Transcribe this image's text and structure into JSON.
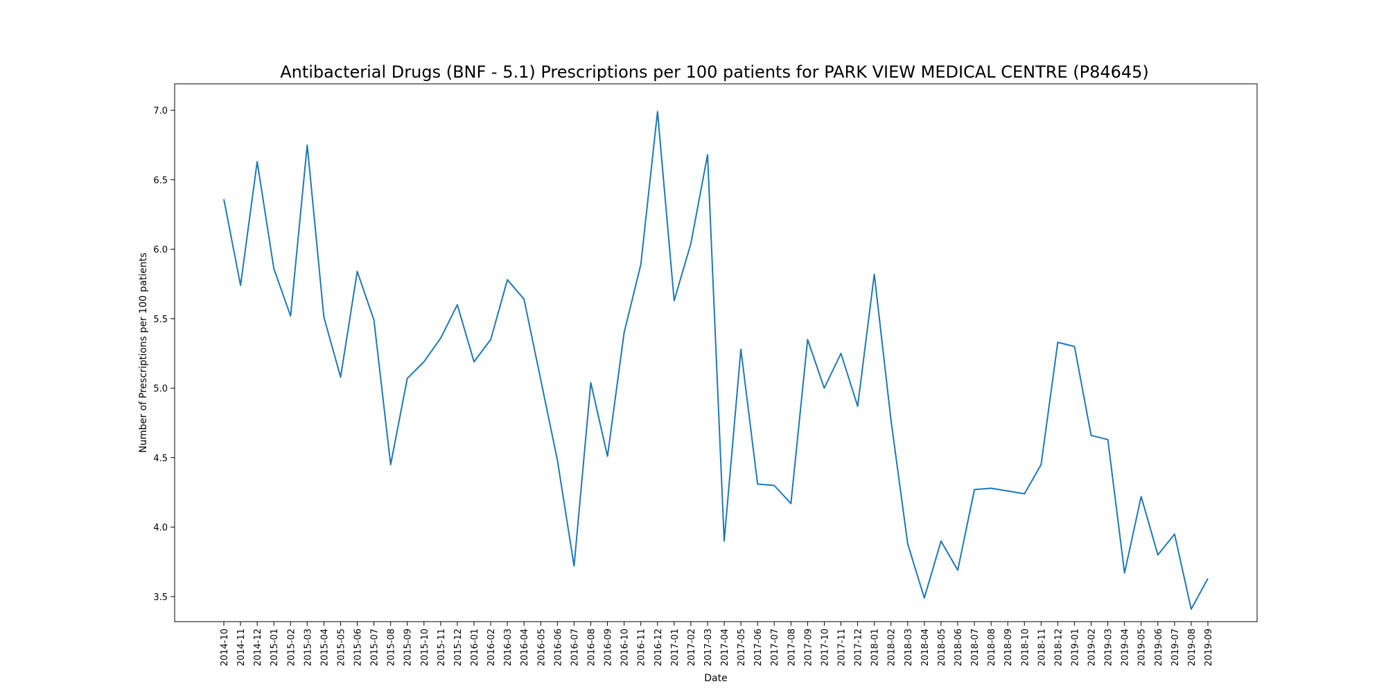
{
  "chart_data": {
    "type": "line",
    "title": "Antibacterial Drugs (BNF - 5.1) Prescriptions per 100 patients for PARK VIEW MEDICAL CENTRE (P84645)",
    "xlabel": "Date",
    "ylabel": "Number of Prescriptions per 100 patients",
    "ylim": [
      3.32,
      7.19
    ],
    "yticks": [
      3.5,
      4.0,
      4.5,
      5.0,
      5.5,
      6.0,
      6.5,
      7.0
    ],
    "grid": false,
    "color": "#1f77b4",
    "categories": [
      "2014-10",
      "2014-11",
      "2014-12",
      "2015-01",
      "2015-02",
      "2015-03",
      "2015-04",
      "2015-05",
      "2015-06",
      "2015-07",
      "2015-08",
      "2015-09",
      "2015-10",
      "2015-11",
      "2015-12",
      "2016-01",
      "2016-02",
      "2016-03",
      "2016-04",
      "2016-05",
      "2016-06",
      "2016-07",
      "2016-08",
      "2016-09",
      "2016-10",
      "2016-11",
      "2016-12",
      "2017-01",
      "2017-02",
      "2017-03",
      "2017-04",
      "2017-05",
      "2017-06",
      "2017-07",
      "2017-08",
      "2017-09",
      "2017-10",
      "2017-11",
      "2017-12",
      "2018-01",
      "2018-02",
      "2018-03",
      "2018-04",
      "2018-05",
      "2018-06",
      "2018-07",
      "2018-08",
      "2018-09",
      "2018-10",
      "2018-11",
      "2018-12",
      "2019-01",
      "2019-02",
      "2019-03",
      "2019-04",
      "2019-05",
      "2019-06",
      "2019-07",
      "2019-08",
      "2019-09"
    ],
    "values": [
      6.36,
      5.74,
      6.63,
      5.86,
      5.52,
      6.75,
      5.51,
      5.08,
      5.84,
      5.49,
      4.45,
      5.07,
      5.19,
      5.36,
      5.6,
      5.19,
      5.35,
      5.78,
      5.64,
      5.06,
      4.48,
      3.72,
      5.04,
      4.51,
      5.4,
      5.89,
      6.99,
      5.63,
      6.04,
      6.68,
      3.9,
      5.28,
      4.31,
      4.3,
      4.17,
      5.35,
      5.0,
      5.25,
      4.87,
      5.82,
      4.77,
      3.88,
      3.49,
      3.9,
      3.69,
      4.27,
      4.28,
      4.26,
      4.24,
      4.45,
      5.33,
      5.3,
      4.66,
      4.63,
      3.67,
      4.22,
      3.8,
      3.95,
      3.41,
      3.63
    ]
  }
}
